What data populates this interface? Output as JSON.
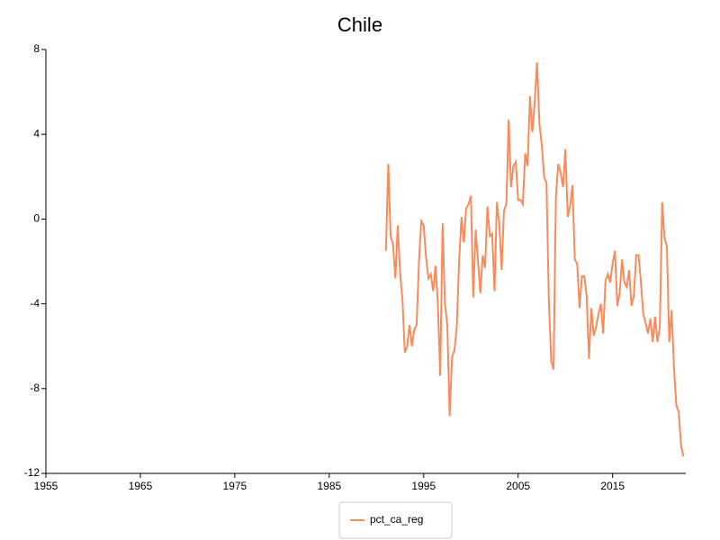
{
  "chart_data": {
    "type": "line",
    "title": "Chile",
    "x": [
      1991,
      1991.25,
      1991.5,
      1991.75,
      1992,
      1992.25,
      1992.5,
      1992.75,
      1993,
      1993.25,
      1993.5,
      1993.75,
      1994,
      1994.25,
      1994.5,
      1994.75,
      1995,
      1995.25,
      1995.5,
      1995.75,
      1996,
      1996.25,
      1996.5,
      1996.75,
      1997,
      1997.25,
      1997.5,
      1997.75,
      1998,
      1998.25,
      1998.5,
      1998.75,
      1999,
      1999.25,
      1999.5,
      1999.75,
      2000,
      2000.25,
      2000.5,
      2000.75,
      2001,
      2001.25,
      2001.5,
      2001.75,
      2002,
      2002.25,
      2002.5,
      2002.75,
      2003,
      2003.25,
      2003.5,
      2003.75,
      2004,
      2004.25,
      2004.5,
      2004.75,
      2005,
      2005.25,
      2005.5,
      2005.75,
      2006,
      2006.25,
      2006.5,
      2006.75,
      2007,
      2007.25,
      2007.5,
      2007.75,
      2008,
      2008.25,
      2008.5,
      2008.75,
      2009,
      2009.25,
      2009.5,
      2009.75,
      2010,
      2010.25,
      2010.5,
      2010.75,
      2011,
      2011.25,
      2011.5,
      2011.75,
      2012,
      2012.25,
      2012.5,
      2012.75,
      2013,
      2013.25,
      2013.5,
      2013.75,
      2014,
      2014.25,
      2014.5,
      2014.75,
      2015,
      2015.25,
      2015.5,
      2015.75,
      2016,
      2016.25,
      2016.5,
      2016.75,
      2017,
      2017.25,
      2017.5,
      2017.75,
      2018,
      2018.25,
      2018.5,
      2018.75,
      2019,
      2019.25,
      2019.5,
      2019.75,
      2020,
      2020.25,
      2020.5,
      2020.75,
      2021,
      2021.25,
      2021.5,
      2021.75,
      2022,
      2022.25,
      2022.5
    ],
    "series": [
      {
        "name": "pct_ca_reg",
        "color": "#f88b5c",
        "values": [
          -1.5,
          2.6,
          -0.8,
          -1.2,
          -2.8,
          -0.3,
          -2.5,
          -3.8,
          -6.3,
          -6.0,
          -5.0,
          -6.0,
          -5.2,
          -5.0,
          -2.0,
          -0.1,
          -0.3,
          -1.8,
          -2.8,
          -2.6,
          -3.4,
          -2.2,
          -4.0,
          -7.4,
          -0.2,
          -4.0,
          -5.0,
          -9.3,
          -6.5,
          -6.2,
          -5.1,
          -2.0,
          0.1,
          -1.1,
          0.5,
          0.7,
          1.1,
          -3.7,
          -0.5,
          -2.0,
          -3.5,
          -1.7,
          -2.3,
          0.6,
          -0.8,
          -0.7,
          -3.4,
          0.8,
          -0.2,
          -2.4,
          0.4,
          0.7,
          4.7,
          1.5,
          2.5,
          2.7,
          0.9,
          0.9,
          0.7,
          3.1,
          2.5,
          5.8,
          4.1,
          5.5,
          7.4,
          4.5,
          3.5,
          2.0,
          1.7,
          -3.8,
          -6.7,
          -7.1,
          1.1,
          2.6,
          2.2,
          1.5,
          3.3,
          0.1,
          0.6,
          1.6,
          -1.9,
          -2.1,
          -4.2,
          -2.7,
          -2.7,
          -3.6,
          -6.6,
          -4.2,
          -5.5,
          -5.1,
          -4.5,
          -4.0,
          -5.4,
          -2.9,
          -2.6,
          -3.0,
          -2.1,
          -1.5,
          -4.1,
          -3.5,
          -1.9,
          -3.0,
          -3.2,
          -2.4,
          -4.1,
          -3.6,
          -1.7,
          -1.7,
          -3.0,
          -4.5,
          -4.9,
          -5.4,
          -4.7,
          -5.8,
          -4.6,
          -5.8,
          -5.1,
          0.8,
          -0.9,
          -1.3,
          -5.8,
          -4.3,
          -7.0,
          -8.8,
          -9.1,
          -10.7,
          -11.2
        ]
      }
    ],
    "xlim": [
      1955,
      2022.75
    ],
    "xticks": [
      1955,
      1965,
      1975,
      1985,
      1995,
      2005,
      2015
    ],
    "ylim": [
      -12,
      8
    ],
    "yticks": [
      -12,
      -8,
      -4,
      0,
      4,
      8
    ],
    "grid": false,
    "legend": "bottom"
  }
}
